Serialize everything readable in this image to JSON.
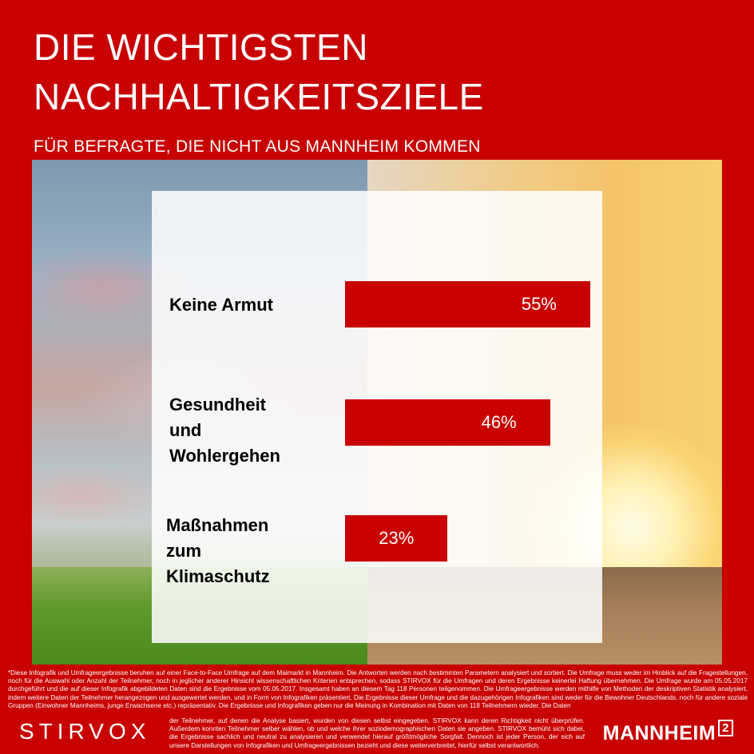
{
  "header": {
    "title_line1": "DIE WICHTIGSTEN",
    "title_line2": "NACHHALTIGKEITSZIELE",
    "subtitle": "FÜR BEFRAGTE, DIE NICHT AUS MANNHEIM KOMMEN"
  },
  "chart_data": {
    "type": "bar",
    "orientation": "horizontal",
    "categories": [
      "Keine Armut",
      "Gesundheit und Wohlergehen",
      "Maßnahmen zum Klimaschutz"
    ],
    "label_lines": [
      [
        "Keine Armut"
      ],
      [
        "Gesundheit",
        "und",
        "Wohlergehen"
      ],
      [
        "Maßnahmen",
        "zum",
        "Klimaschutz"
      ]
    ],
    "values": [
      55,
      46,
      23
    ],
    "value_labels": [
      "55%",
      "46%",
      "23%"
    ],
    "bar_color": "#c80000"
  },
  "footer": {
    "disclaimer_main": "*Diese Infografik und Umfrageergebnisse beruhen auf einer Face-to-Face Umfrage auf dem Maimarkt in Mannheim. Die Antworten werden nach bestimmten Parametern analysiert und sortiert. Die Umfrage muss weder im Hinblick auf die Fragestellungen, noch für die Auswahl oder Anzahl der Teilnehmer, noch in jeglicher anderer Hinsicht wissenschaftlichen Kriterien entsprechen, sodass STIRVOX für die Umfragen und deren Ergebnisse keinerlei Haftung übernehmen. Die Umfrage wurde am 05.05.2017 durchgeführt und die auf dieser Infografik abgebildeten Daten sind die Ergebnisse vom 05.05.2017. Insgesamt haben an diesem Tag 118 Personen teilgenommen. Die Umfrageergebnisse werden mithilfe von Methoden der deskriptiven Statistik analysiert, indem weitere Daten der Teilnehmer herangezogen und ausgewertet werden, und in Form von Infografiken präsentiert. Die Ergebnisse dieser Umfrage und die dazugehörigen Infografiken sind weder für die Bewohner Deutschlands, noch für andere soziale Gruppen (Einwohner Mannheims, junge Erwachsene etc.) repräsentativ. Die Ergebnisse und Infografiken geben nur die Meinung in Kombination mit Daten von 118 Teilnehmern wieder. Die Daten",
    "disclaimer_cont": "der Teilnehmer, auf denen die Analyse basiert, wurden von diesen selbst eingegeben. STIRVOX kann deren Richtigkeit nicht überprüfen. Außerdem konnten Teilnehmer selber wählen, ob und welche ihrer soziodemographischen Daten sie angeben. STIRVOX bemüht sich dabei, die Ergebnisse sachlich und neutral zu analysieren und verwendet hierauf größtmögliche Sorgfalt. Dennoch ist jeder Person, der sich auf unsere Darstellungen von Infografiken und Umfrageergebnissen bezieht und diese weiterverbreitet, hierfür selbst verantwortlich.",
    "brand_left": "STIRVOX",
    "brand_right": "MANNHEIM",
    "brand_right_sup": "2"
  }
}
